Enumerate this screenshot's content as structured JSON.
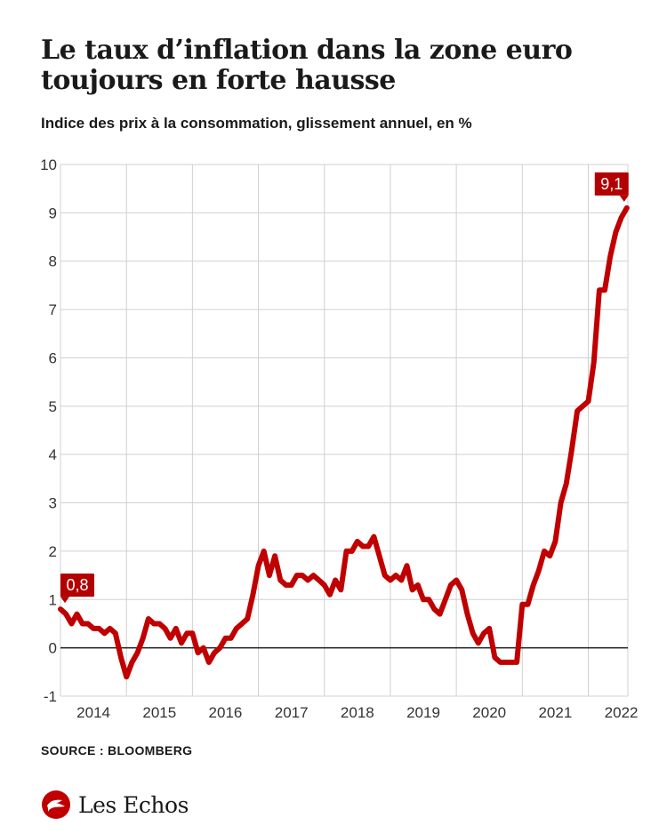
{
  "title": "Le taux d’inflation dans la zone euro toujours en forte hausse",
  "subtitle": "Indice des prix à la consommation, glissement annuel, en %",
  "source": "SOURCE : BLOOMBERG",
  "brand": {
    "name": "Les Echos",
    "logo_icon": "les-echos-logo-icon"
  },
  "colors": {
    "line": "#c00000",
    "label_bg": "#b30000",
    "grid": "#d0d0d0",
    "zero": "#1a1a1a"
  },
  "chart_data": {
    "type": "line",
    "title": "Le taux d’inflation dans la zone euro toujours en forte hausse",
    "subtitle": "Indice des prix à la consommation, glissement annuel, en %",
    "xlabel": "",
    "ylabel": "",
    "ylim": [
      -1,
      10
    ],
    "xlim": [
      2014.0,
      2022.6
    ],
    "yticks": [
      "-1",
      "0",
      "1",
      "2",
      "3",
      "4",
      "5",
      "6",
      "7",
      "8",
      "9",
      "10"
    ],
    "xticks": [
      "2014",
      "2015",
      "2016",
      "2017",
      "2018",
      "2019",
      "2020",
      "2021",
      "2022"
    ],
    "grid": true,
    "x_start": "2014-01",
    "series": [
      {
        "values": [
          0.8,
          0.7,
          0.5,
          0.7,
          0.5,
          0.5,
          0.4,
          0.4,
          0.3,
          0.4,
          0.3,
          -0.2,
          -0.6,
          -0.3,
          -0.1,
          0.2,
          0.6,
          0.5,
          0.5,
          0.4,
          0.2,
          0.4,
          0.1,
          0.3,
          0.3,
          -0.1,
          0.0,
          -0.3,
          -0.1,
          0.0,
          0.2,
          0.2,
          0.4,
          0.5,
          0.6,
          1.1,
          1.7,
          2.0,
          1.5,
          1.9,
          1.4,
          1.3,
          1.3,
          1.5,
          1.5,
          1.4,
          1.5,
          1.4,
          1.3,
          1.1,
          1.4,
          1.2,
          2.0,
          2.0,
          2.2,
          2.1,
          2.1,
          2.3,
          1.9,
          1.5,
          1.4,
          1.5,
          1.4,
          1.7,
          1.2,
          1.3,
          1.0,
          1.0,
          0.8,
          0.7,
          1.0,
          1.3,
          1.4,
          1.2,
          0.7,
          0.3,
          0.1,
          0.3,
          0.4,
          -0.2,
          -0.3,
          -0.3,
          -0.3,
          -0.3,
          0.9,
          0.9,
          1.3,
          1.6,
          2.0,
          1.9,
          2.2,
          3.0,
          3.4,
          4.1,
          4.9,
          5.0,
          5.1,
          5.9,
          7.4,
          7.4,
          8.1,
          8.6,
          8.9,
          9.1
        ]
      }
    ],
    "annotations": [
      {
        "label": "0,8",
        "x": "2014-01",
        "y": 0.8
      },
      {
        "label": "9,1",
        "x": "2022-08",
        "y": 9.1
      }
    ]
  }
}
